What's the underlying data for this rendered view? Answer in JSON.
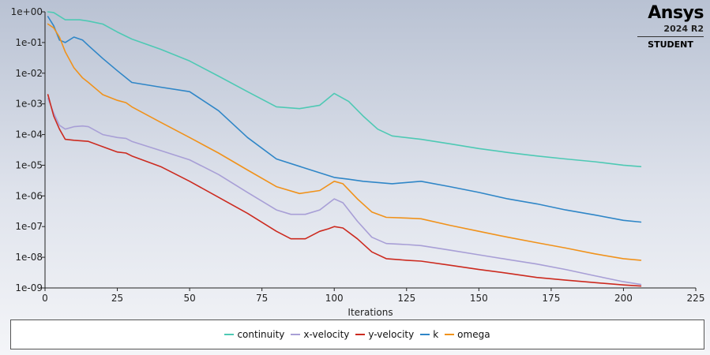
{
  "logo": {
    "name": "Ansys",
    "version": "2024 R2",
    "edition": "STUDENT"
  },
  "chart_data": {
    "type": "line",
    "title": "",
    "xlabel": "Iterations",
    "ylabel": "",
    "xlim": [
      0,
      225
    ],
    "ylim": [
      1e-09,
      1
    ],
    "yscale": "log",
    "xticks": [
      0,
      25,
      50,
      75,
      100,
      125,
      150,
      175,
      200,
      225
    ],
    "xtick_labels": [
      "0",
      "25",
      "50",
      "75",
      "100",
      "125",
      "150",
      "175",
      "200",
      "225"
    ],
    "yticks": [
      1,
      0.1,
      0.01,
      0.001,
      0.0001,
      1e-05,
      1e-06,
      1e-07,
      1e-08,
      1e-09
    ],
    "ytick_labels": [
      "1e+00",
      "1e-01",
      "1e-02",
      "1e-03",
      "1e-04",
      "1e-05",
      "1e-06",
      "1e-07",
      "1e-08",
      "1e-09"
    ],
    "grid": false,
    "legend_position": "bottom",
    "series": [
      {
        "name": "continuity",
        "color": "#4ec9b4",
        "x": [
          1,
          3,
          7,
          12,
          15,
          20,
          25,
          30,
          40,
          50,
          60,
          70,
          80,
          88,
          95,
          100,
          105,
          110,
          115,
          120,
          130,
          140,
          150,
          160,
          170,
          180,
          190,
          200,
          206
        ],
        "y": [
          1.0,
          0.95,
          0.55,
          0.55,
          0.5,
          0.4,
          0.22,
          0.13,
          0.06,
          0.025,
          0.008,
          0.0025,
          0.0008,
          0.0007,
          0.0009,
          0.0022,
          0.0012,
          0.0004,
          0.00015,
          9e-05,
          7e-05,
          5e-05,
          3.5e-05,
          2.6e-05,
          2e-05,
          1.6e-05,
          1.3e-05,
          1e-05,
          9e-06
        ]
      },
      {
        "name": "x-velocity",
        "color": "#a89fd6",
        "x": [
          1,
          3,
          5,
          7,
          10,
          13,
          15,
          20,
          25,
          28,
          30,
          40,
          50,
          60,
          70,
          80,
          85,
          90,
          95,
          100,
          103,
          108,
          113,
          118,
          125,
          130,
          140,
          150,
          160,
          170,
          180,
          190,
          200,
          206
        ],
        "y": [
          0.0015,
          0.0005,
          0.0002,
          0.00015,
          0.00018,
          0.00019,
          0.00018,
          0.0001,
          8e-05,
          7.5e-05,
          6e-05,
          3e-05,
          1.5e-05,
          5e-06,
          1.3e-06,
          3.5e-07,
          2.5e-07,
          2.5e-07,
          3.5e-07,
          8e-07,
          6e-07,
          1.5e-07,
          4.5e-08,
          2.8e-08,
          2.6e-08,
          2.4e-08,
          1.7e-08,
          1.2e-08,
          8.5e-09,
          6e-09,
          4e-09,
          2.5e-09,
          1.6e-09,
          1.3e-09
        ]
      },
      {
        "name": "y-velocity",
        "color": "#cc2a1f",
        "x": [
          1,
          3,
          5,
          7,
          10,
          15,
          20,
          25,
          28,
          30,
          40,
          50,
          60,
          70,
          80,
          85,
          90,
          95,
          98,
          100,
          103,
          108,
          113,
          118,
          125,
          130,
          140,
          150,
          160,
          170,
          180,
          190,
          200,
          206
        ],
        "y": [
          0.002,
          0.0004,
          0.00015,
          7e-05,
          6.5e-05,
          6e-05,
          4e-05,
          2.7e-05,
          2.5e-05,
          2e-05,
          9e-06,
          3e-06,
          9e-07,
          2.7e-07,
          7e-08,
          4e-08,
          4e-08,
          7e-08,
          8.5e-08,
          1e-07,
          9e-08,
          4e-08,
          1.5e-08,
          9e-09,
          8e-09,
          7.5e-09,
          5.5e-09,
          4e-09,
          3e-09,
          2.2e-09,
          1.8e-09,
          1.5e-09,
          1.25e-09,
          1.15e-09
        ]
      },
      {
        "name": "k",
        "color": "#2f86c7",
        "x": [
          1,
          3,
          5,
          7,
          10,
          13,
          15,
          20,
          25,
          30,
          40,
          50,
          60,
          70,
          80,
          90,
          100,
          105,
          110,
          120,
          130,
          140,
          150,
          160,
          170,
          180,
          190,
          200,
          206
        ],
        "y": [
          0.7,
          0.35,
          0.12,
          0.1,
          0.15,
          0.12,
          0.08,
          0.03,
          0.012,
          0.005,
          0.0035,
          0.0025,
          0.0006,
          8e-05,
          1.6e-05,
          8e-06,
          4e-06,
          3.5e-06,
          3e-06,
          2.5e-06,
          3e-06,
          2e-06,
          1.3e-06,
          8e-07,
          5.5e-07,
          3.5e-07,
          2.4e-07,
          1.6e-07,
          1.4e-07
        ]
      },
      {
        "name": "omega",
        "color": "#f0921b",
        "x": [
          1,
          3,
          5,
          7,
          10,
          13,
          15,
          20,
          25,
          28,
          30,
          40,
          50,
          60,
          70,
          80,
          88,
          95,
          100,
          103,
          108,
          113,
          118,
          125,
          130,
          140,
          150,
          160,
          170,
          180,
          190,
          200,
          206
        ],
        "y": [
          0.4,
          0.3,
          0.15,
          0.05,
          0.015,
          0.007,
          0.005,
          0.002,
          0.0013,
          0.0011,
          0.0008,
          0.00025,
          8e-05,
          2.5e-05,
          7e-06,
          2e-06,
          1.2e-06,
          1.5e-06,
          3e-06,
          2.5e-06,
          8e-07,
          3e-07,
          2e-07,
          1.9e-07,
          1.8e-07,
          1.1e-07,
          7e-08,
          4.5e-08,
          3e-08,
          2e-08,
          1.3e-08,
          9e-09,
          8e-09
        ]
      }
    ]
  }
}
